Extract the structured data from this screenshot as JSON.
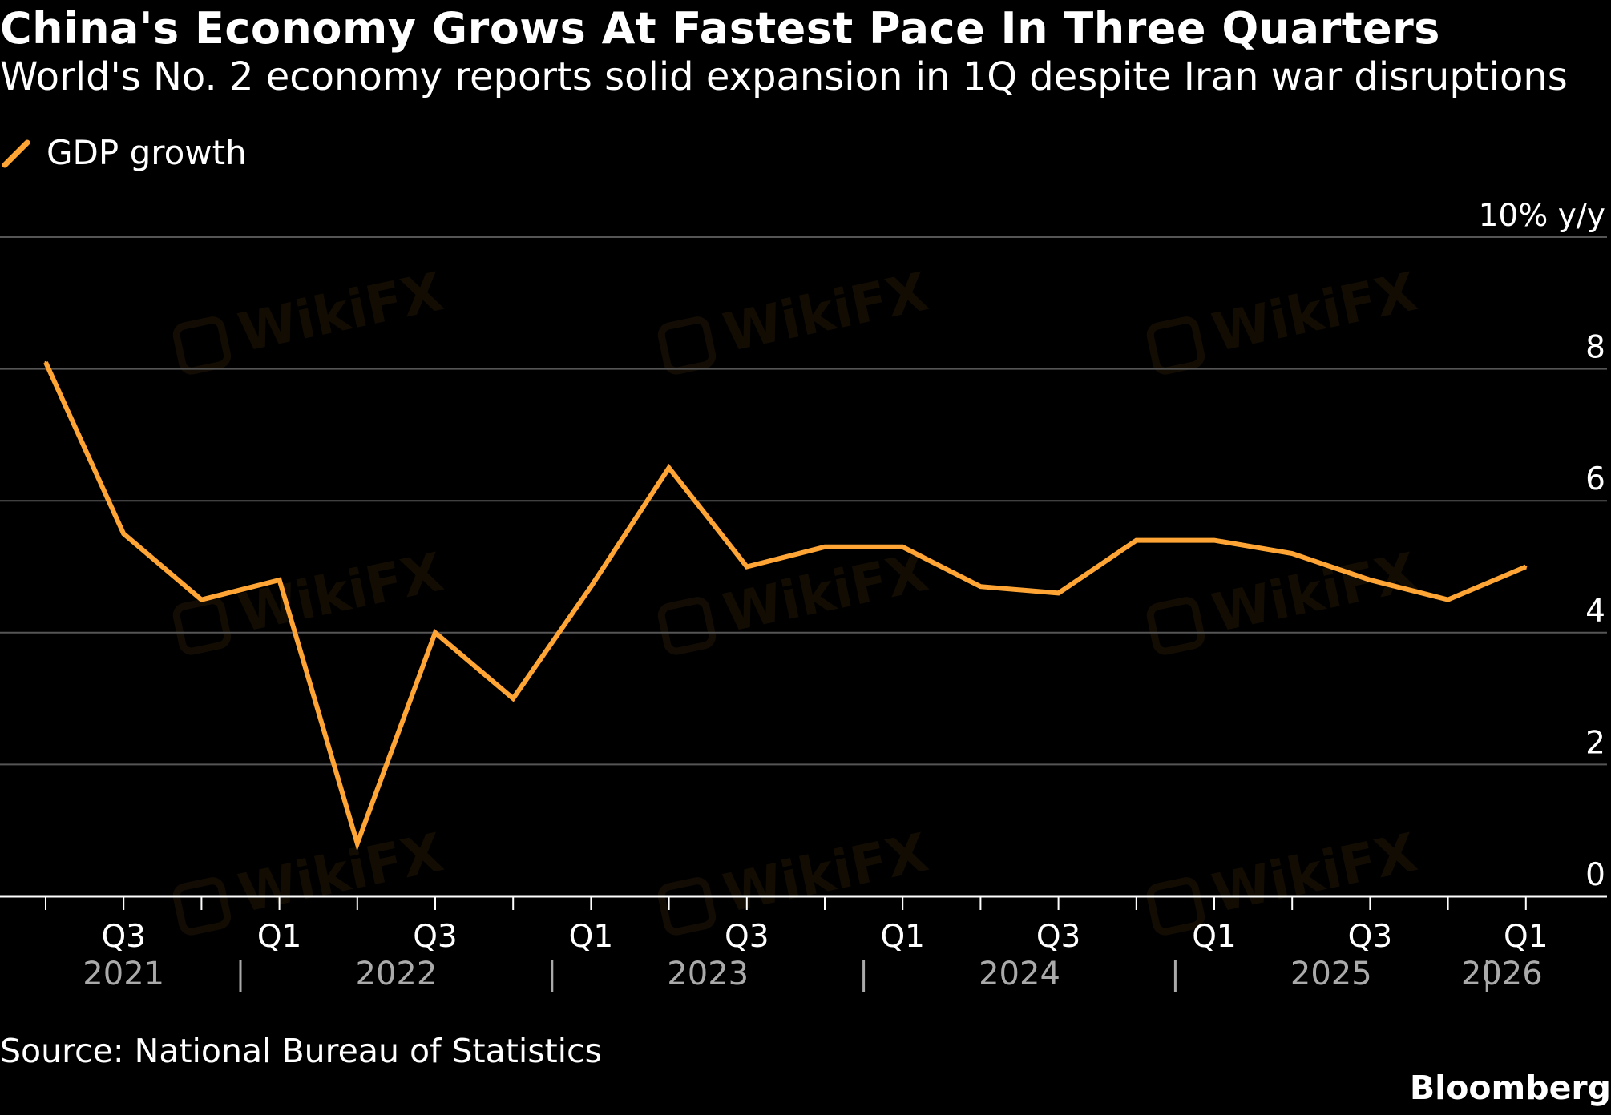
{
  "title": "China's Economy Grows At Fastest Pace In Three Quarters",
  "subtitle": "World's No. 2 economy reports solid expansion in 1Q despite Iran war disruptions",
  "source": "Source: National Bureau of Statistics",
  "brand": "Bloomberg",
  "watermark": "WikiFX",
  "colors": {
    "line": "#ffa535",
    "grid": "#555555",
    "axis": "#ffffff",
    "year_text": "#aaaaaa",
    "background": "#000000"
  },
  "chart_data": {
    "type": "line",
    "title": "China's Economy Grows At Fastest Pace In Three Quarters",
    "subtitle": "World's No. 2 economy reports solid expansion in 1Q despite Iran war disruptions",
    "ylabel": "10% y/y",
    "ylim": [
      0,
      10
    ],
    "yticks": [
      0,
      2,
      4,
      6,
      8,
      10
    ],
    "ytick_labels": [
      "0",
      "2",
      "4",
      "6",
      "8",
      "10% y/y"
    ],
    "y_axis_side": "right",
    "grid": true,
    "legend_position": "top-left",
    "x": [
      "2021 Q2",
      "2021 Q3",
      "2021 Q4",
      "2022 Q1",
      "2022 Q2",
      "2022 Q3",
      "2022 Q4",
      "2023 Q1",
      "2023 Q2",
      "2023 Q3",
      "2023 Q4",
      "2024 Q1",
      "2024 Q2",
      "2024 Q3",
      "2024 Q4",
      "2025 Q1",
      "2025 Q2",
      "2025 Q3",
      "2025 Q4",
      "2026 Q1"
    ],
    "x_tick_labels": [
      "",
      "Q3",
      "",
      "Q1",
      "",
      "Q3",
      "",
      "Q1",
      "",
      "Q3",
      "",
      "Q1",
      "",
      "Q3",
      "",
      "Q1",
      "",
      "Q3",
      "",
      "Q1"
    ],
    "year_labels": [
      {
        "label": "2021",
        "quarters": [
          "2021 Q2",
          "2021 Q4"
        ]
      },
      {
        "label": "2022",
        "quarters": [
          "2022 Q1",
          "2022 Q4"
        ]
      },
      {
        "label": "2023",
        "quarters": [
          "2023 Q1",
          "2023 Q4"
        ]
      },
      {
        "label": "2024",
        "quarters": [
          "2024 Q1",
          "2024 Q4"
        ]
      },
      {
        "label": "2025",
        "quarters": [
          "2025 Q1",
          "2025 Q4"
        ]
      },
      {
        "label": "2026",
        "quarters": [
          "2026 Q1",
          "2026 Q1"
        ]
      }
    ],
    "series": [
      {
        "name": "GDP growth",
        "values": [
          8.1,
          5.5,
          4.5,
          4.8,
          0.8,
          4.0,
          3.0,
          4.7,
          6.5,
          5.0,
          5.3,
          5.3,
          4.7,
          4.6,
          5.4,
          5.4,
          5.2,
          4.8,
          4.5,
          5.0
        ]
      }
    ]
  }
}
